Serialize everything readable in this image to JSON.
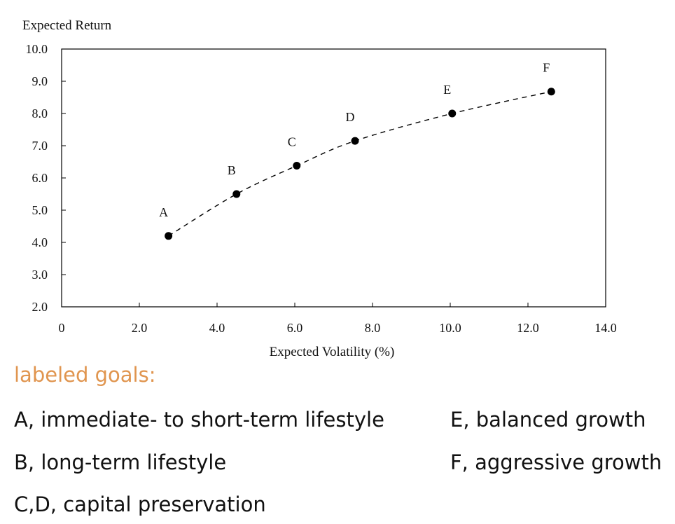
{
  "chart_data": {
    "type": "scatter",
    "ylabel": "Expected Return",
    "xlabel": "Expected Volatility (%)",
    "xlim": [
      0,
      14
    ],
    "ylim": [
      2,
      10
    ],
    "x_ticks": [
      "0",
      "2.0",
      "4.0",
      "6.0",
      "8.0",
      "10.0",
      "12.0",
      "14.0"
    ],
    "y_ticks": [
      "2.0",
      "3.0",
      "4.0",
      "5.0",
      "6.0",
      "7.0",
      "8.0",
      "9.0",
      "10.0"
    ],
    "grid": false,
    "trend_line": "dashed",
    "points": [
      {
        "label": "A",
        "x": 2.75,
        "y": 4.2
      },
      {
        "label": "B",
        "x": 4.5,
        "y": 5.5
      },
      {
        "label": "C",
        "x": 6.05,
        "y": 6.38
      },
      {
        "label": "D",
        "x": 7.55,
        "y": 7.15
      },
      {
        "label": "E",
        "x": 10.05,
        "y": 8.0
      },
      {
        "label": "F",
        "x": 12.6,
        "y": 8.68
      }
    ]
  },
  "goals": {
    "heading": "labeled goals:",
    "items": [
      "A, immediate- to short-term lifestyle",
      "B, long-term lifestyle",
      "C,D, capital preservation",
      "E, balanced growth",
      "F, aggressive growth"
    ]
  },
  "colors": {
    "heading": "#e0954f",
    "text": "#111111",
    "marker": "#000000"
  }
}
